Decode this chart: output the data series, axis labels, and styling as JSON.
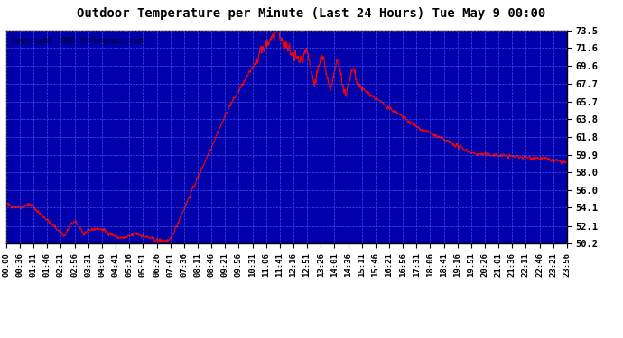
{
  "title": "Outdoor Temperature per Minute (Last 24 Hours) Tue May 9 00:00",
  "copyright": "Copyright 2006 Cartronics.com",
  "bg_color": "#0000AA",
  "plot_bg_color": "#0000AA",
  "line_color": "#FF0000",
  "grid_color": "#4444FF",
  "text_color": "#000000",
  "border_color": "#000000",
  "yticks": [
    50.2,
    52.1,
    54.1,
    56.0,
    58.0,
    59.9,
    61.8,
    63.8,
    65.7,
    67.7,
    69.6,
    71.6,
    73.5
  ],
  "ymin": 50.2,
  "ymax": 73.5,
  "x_labels": [
    "00:00",
    "00:36",
    "01:11",
    "01:46",
    "02:21",
    "02:56",
    "03:31",
    "04:06",
    "04:41",
    "05:16",
    "05:51",
    "06:26",
    "07:01",
    "07:36",
    "08:11",
    "08:46",
    "09:21",
    "09:56",
    "10:31",
    "11:06",
    "11:41",
    "12:16",
    "12:51",
    "13:26",
    "14:01",
    "14:36",
    "15:11",
    "15:46",
    "16:21",
    "16:56",
    "17:31",
    "18:06",
    "18:41",
    "19:16",
    "19:51",
    "20:26",
    "21:01",
    "21:36",
    "22:11",
    "22:46",
    "23:21",
    "23:56"
  ]
}
